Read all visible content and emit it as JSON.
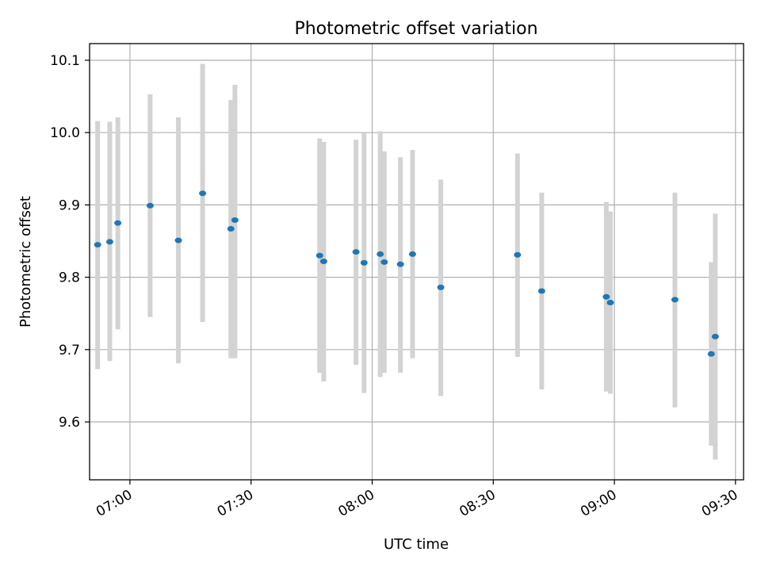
{
  "chart_data": {
    "type": "scatter",
    "title": "Photometric offset variation",
    "xlabel": "UTC time",
    "ylabel": "Photometric offset",
    "grid": true,
    "xlim": [
      "06:50",
      "09:32"
    ],
    "ylim": [
      9.52,
      10.123
    ],
    "x_ticks": [
      "07:00",
      "07:30",
      "08:00",
      "08:30",
      "09:00",
      "09:30"
    ],
    "y_ticks": [
      9.6,
      9.7,
      9.8,
      9.9,
      10.0,
      10.1
    ],
    "colors": {
      "points": "#1f77b4",
      "errorbars": "#d3d3d3"
    },
    "points": [
      {
        "time": "06:52",
        "y": 9.845,
        "ylo": 9.673,
        "yhi": 10.016
      },
      {
        "time": "06:55",
        "y": 9.849,
        "ylo": 9.684,
        "yhi": 10.015
      },
      {
        "time": "06:57",
        "y": 9.875,
        "ylo": 9.728,
        "yhi": 10.021
      },
      {
        "time": "07:05",
        "y": 9.899,
        "ylo": 9.745,
        "yhi": 10.053
      },
      {
        "time": "07:12",
        "y": 9.851,
        "ylo": 9.681,
        "yhi": 10.021
      },
      {
        "time": "07:18",
        "y": 9.916,
        "ylo": 9.738,
        "yhi": 10.095
      },
      {
        "time": "07:25",
        "y": 9.867,
        "ylo": 9.688,
        "yhi": 10.045
      },
      {
        "time": "07:26",
        "y": 9.879,
        "ylo": 9.688,
        "yhi": 10.066
      },
      {
        "time": "07:47",
        "y": 9.83,
        "ylo": 9.668,
        "yhi": 9.992
      },
      {
        "time": "07:48",
        "y": 9.822,
        "ylo": 9.656,
        "yhi": 9.987
      },
      {
        "time": "07:56",
        "y": 9.835,
        "ylo": 9.679,
        "yhi": 9.99
      },
      {
        "time": "07:58",
        "y": 9.82,
        "ylo": 9.64,
        "yhi": 9.999
      },
      {
        "time": "08:02",
        "y": 9.832,
        "ylo": 9.662,
        "yhi": 10.002
      },
      {
        "time": "08:03",
        "y": 9.821,
        "ylo": 9.668,
        "yhi": 9.974
      },
      {
        "time": "08:07",
        "y": 9.818,
        "ylo": 9.668,
        "yhi": 9.966
      },
      {
        "time": "08:10",
        "y": 9.832,
        "ylo": 9.688,
        "yhi": 9.976
      },
      {
        "time": "08:17",
        "y": 9.786,
        "ylo": 9.636,
        "yhi": 9.935
      },
      {
        "time": "08:36",
        "y": 9.831,
        "ylo": 9.69,
        "yhi": 9.971
      },
      {
        "time": "08:42",
        "y": 9.781,
        "ylo": 9.645,
        "yhi": 9.917
      },
      {
        "time": "08:58",
        "y": 9.773,
        "ylo": 9.642,
        "yhi": 9.904
      },
      {
        "time": "08:59",
        "y": 9.765,
        "ylo": 9.639,
        "yhi": 9.891
      },
      {
        "time": "09:15",
        "y": 9.769,
        "ylo": 9.62,
        "yhi": 9.917
      },
      {
        "time": "09:24",
        "y": 9.694,
        "ylo": 9.567,
        "yhi": 9.821
      },
      {
        "time": "09:25",
        "y": 9.718,
        "ylo": 9.548,
        "yhi": 9.888
      }
    ]
  }
}
